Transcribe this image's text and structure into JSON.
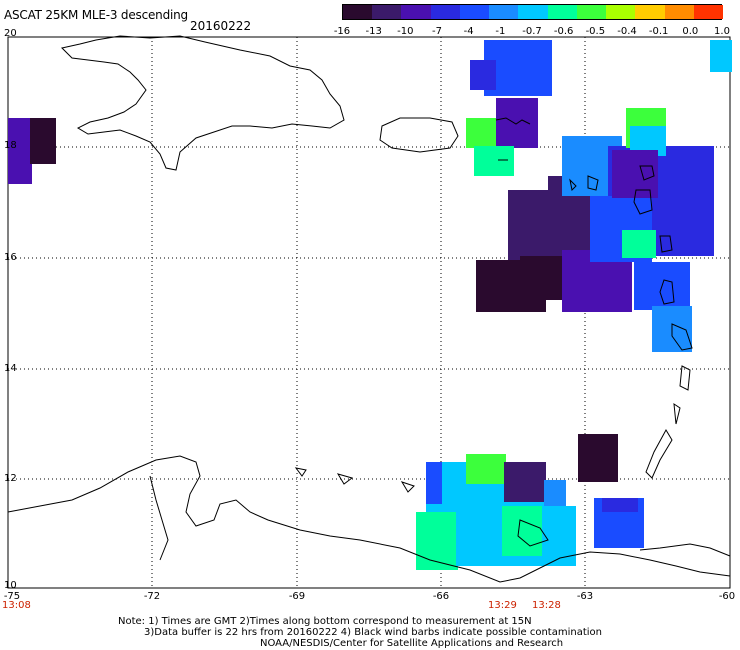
{
  "title": "ASCAT 25KM MLE-3 descending",
  "date": "20160222",
  "colorbar": {
    "labels": [
      "-16",
      "-13",
      "-10",
      "-7",
      "-4",
      "-1",
      "-0.7",
      "-0.6",
      "-0.5",
      "-0.4",
      "-0.1",
      "0.0",
      "1.0"
    ],
    "colors": [
      "#2a0a2e",
      "#3b1a6a",
      "#4a10b0",
      "#2a2ae0",
      "#1a4cff",
      "#1a8cff",
      "#00c8ff",
      "#00ff9a",
      "#3cff3c",
      "#aaff00",
      "#ffcc00",
      "#ff8c00",
      "#ff3300"
    ]
  },
  "axes": {
    "lat_labels": [
      "20",
      "18",
      "16",
      "14",
      "12",
      "10"
    ],
    "lon_labels": [
      "-75",
      "-72",
      "-69",
      "-66",
      "-63",
      "-60"
    ]
  },
  "times": {
    "left": "13:08",
    "mid1": "13:29",
    "mid2": "13:28"
  },
  "notes": {
    "line1": "Note: 1) Times are GMT 2)Times along bottom correspond to measurement at 15N",
    "line2": "3)Data buffer is 22 hrs from 20160222 4) Black wind barbs indicate possible contamination",
    "line3": "NOAA/NESDIS/Center for Satellite Applications and Research"
  }
}
